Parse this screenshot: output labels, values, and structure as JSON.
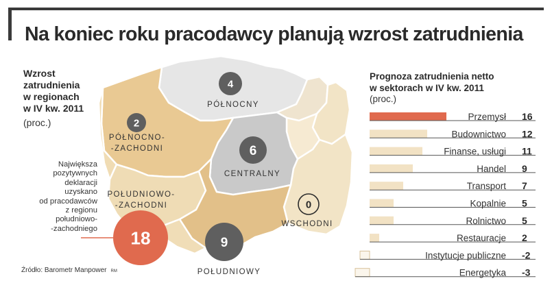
{
  "title": "Na koniec roku pracodawcy planują wzrost zatrudnienia",
  "left_panel": {
    "heading": [
      "Wzrost",
      "zatrudnienia",
      "w regionach",
      "w IV kw. 2011"
    ],
    "unit": "(proc.)",
    "note": [
      "Największa",
      "pozytywnych",
      "deklaracji",
      "uzyskano",
      "od pracodawców",
      "z regionu",
      "południowo-",
      "-zachodniego"
    ]
  },
  "source": "Źródło: Barometr Manpower",
  "source_mark": "RM",
  "colors": {
    "highlight": "#e06a4e",
    "bar_fill": "#f2e2c4",
    "negative_bar": "#fbf6ec",
    "north": "#e6e6e6",
    "central": "#c9c9c9",
    "northwest": "#e9c993",
    "southwest": "#efdcb5",
    "south": "#e2c089",
    "east": "#f2e4c6",
    "bubble": "#5f5f5f"
  },
  "chart_data": [
    {
      "type": "map",
      "title": "Wzrost zatrudnienia w regionach w IV kw. 2011",
      "unit": "(proc.)",
      "regions": [
        {
          "name": "PÓŁNOCNY",
          "value": 4
        },
        {
          "name": "PÓŁNOCNO-ZACHODNI",
          "value": 2
        },
        {
          "name": "CENTRALNY",
          "value": 6
        },
        {
          "name": "POŁUDNIOWO-ZACHODNI",
          "value": 18
        },
        {
          "name": "WSCHODNI",
          "value": 0
        },
        {
          "name": "POŁUDNIOWY",
          "value": 9
        }
      ]
    },
    {
      "type": "bar",
      "orientation": "horizontal",
      "title": "Prognoza zatrudnienia netto w sektorach w IV kw. 2011",
      "unit": "(proc.)",
      "categories": [
        "Przemysł",
        "Budownictwo",
        "Finanse, usługi",
        "Handel",
        "Transport",
        "Kopalnie",
        "Rolnictwo",
        "Restauracje",
        "Instytucje publiczne",
        "Energetyka"
      ],
      "values": [
        16,
        12,
        11,
        9,
        7,
        5,
        5,
        2,
        -2,
        -3
      ],
      "value_labels": [
        "16",
        "12",
        "11",
        "9",
        "7",
        "5",
        "5",
        "2",
        "-2",
        "-3"
      ],
      "highlight": "Przemysł",
      "grid": false
    }
  ]
}
